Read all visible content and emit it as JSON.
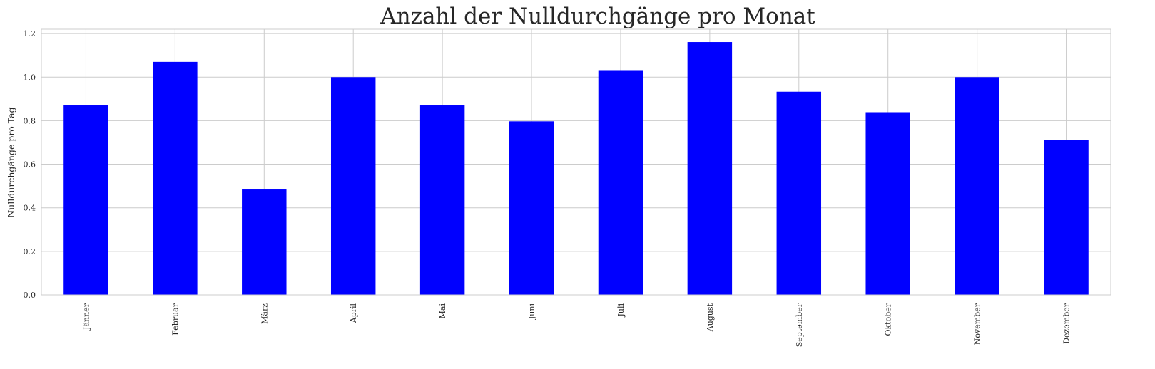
{
  "chart_data": {
    "type": "bar",
    "title": "Anzahl der Nulldurchgänge pro Monat",
    "xlabel": "",
    "ylabel": "Nulldurchgänge pro Tag",
    "categories": [
      "Jänner",
      "Februar",
      "März",
      "April",
      "Mai",
      "Juni",
      "Juli",
      "August",
      "September",
      "Oktober",
      "November",
      "Dezember"
    ],
    "values": [
      0.87,
      1.07,
      0.484,
      1.0,
      0.87,
      0.797,
      1.032,
      1.161,
      0.933,
      0.839,
      1.0,
      0.71
    ],
    "ylim": [
      0,
      1.22
    ],
    "yticks": [
      "0.0",
      "0.2",
      "0.4",
      "0.6",
      "0.8",
      "1.0",
      "1.2"
    ],
    "grid": true,
    "legend": "none",
    "bar_color": "#0000ff",
    "grid_color": "#cccccc",
    "text_color": "#262626"
  }
}
